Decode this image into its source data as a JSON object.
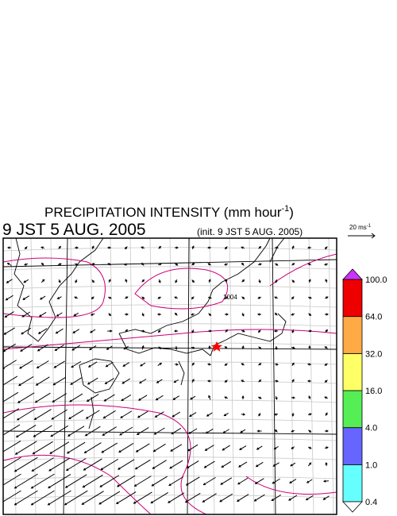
{
  "title": "PRECIPITATION INTENSITY (mm hour",
  "title_exponent": "-1",
  "title_close": ")",
  "valid_time": "9 JST 5 AUG. 2005",
  "init_time": "(init. 9 JST 5 AUG. 2005)",
  "vector_scale": {
    "label": "20 ms",
    "exponent": "-1"
  },
  "map_annotation": "1004",
  "colorbar": {
    "levels": [
      {
        "value": 0.4,
        "label": "0.4"
      },
      {
        "value": 1,
        "label": "1.0"
      },
      {
        "value": 4,
        "label": "4.0"
      },
      {
        "value": 16,
        "label": "16.0"
      },
      {
        "value": 32,
        "label": "32.0"
      },
      {
        "value": 64,
        "label": "64.0"
      },
      {
        "value": 100,
        "label": "100.0"
      }
    ],
    "colors": [
      "#66ffff",
      "#6666ff",
      "#55ee55",
      "#ffff66",
      "#ffaa44",
      "#ee0000"
    ],
    "under_color": "#ffffff",
    "over_color": "#cc33ff"
  }
}
